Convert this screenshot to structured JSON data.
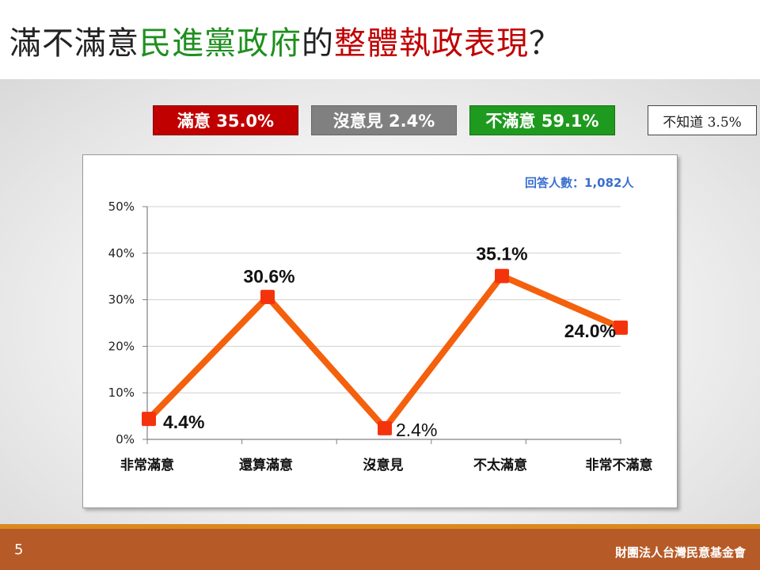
{
  "title": {
    "part1": "滿不滿意",
    "part2": "民進黨政府",
    "part3": "的",
    "part4": "整體執政表現",
    "part5": "？"
  },
  "legend": {
    "satisfied": "滿意 35.0%",
    "no_opinion": "沒意見 2.4%",
    "unsatisfied": "不滿意 59.1%",
    "dont_know": "不知道 3.5%"
  },
  "respondents": "回答人數：1,082人",
  "chart_data": {
    "type": "line",
    "categories": [
      "非常滿意",
      "還算滿意",
      "沒意見",
      "不太滿意",
      "非常不滿意"
    ],
    "values": [
      4.4,
      30.6,
      2.4,
      35.1,
      24.0
    ],
    "data_labels": [
      "4.4%",
      "30.6%",
      "2.4%",
      "35.1%",
      "24.0%"
    ],
    "yticks": [
      "0%",
      "10%",
      "20%",
      "30%",
      "40%",
      "50%"
    ],
    "ylim": [
      0,
      50
    ],
    "grid": true,
    "line_color": "#f4600c",
    "marker_color": "#f4330c"
  },
  "footer": {
    "page": "5",
    "org": "財團法人台灣民意基金會"
  }
}
